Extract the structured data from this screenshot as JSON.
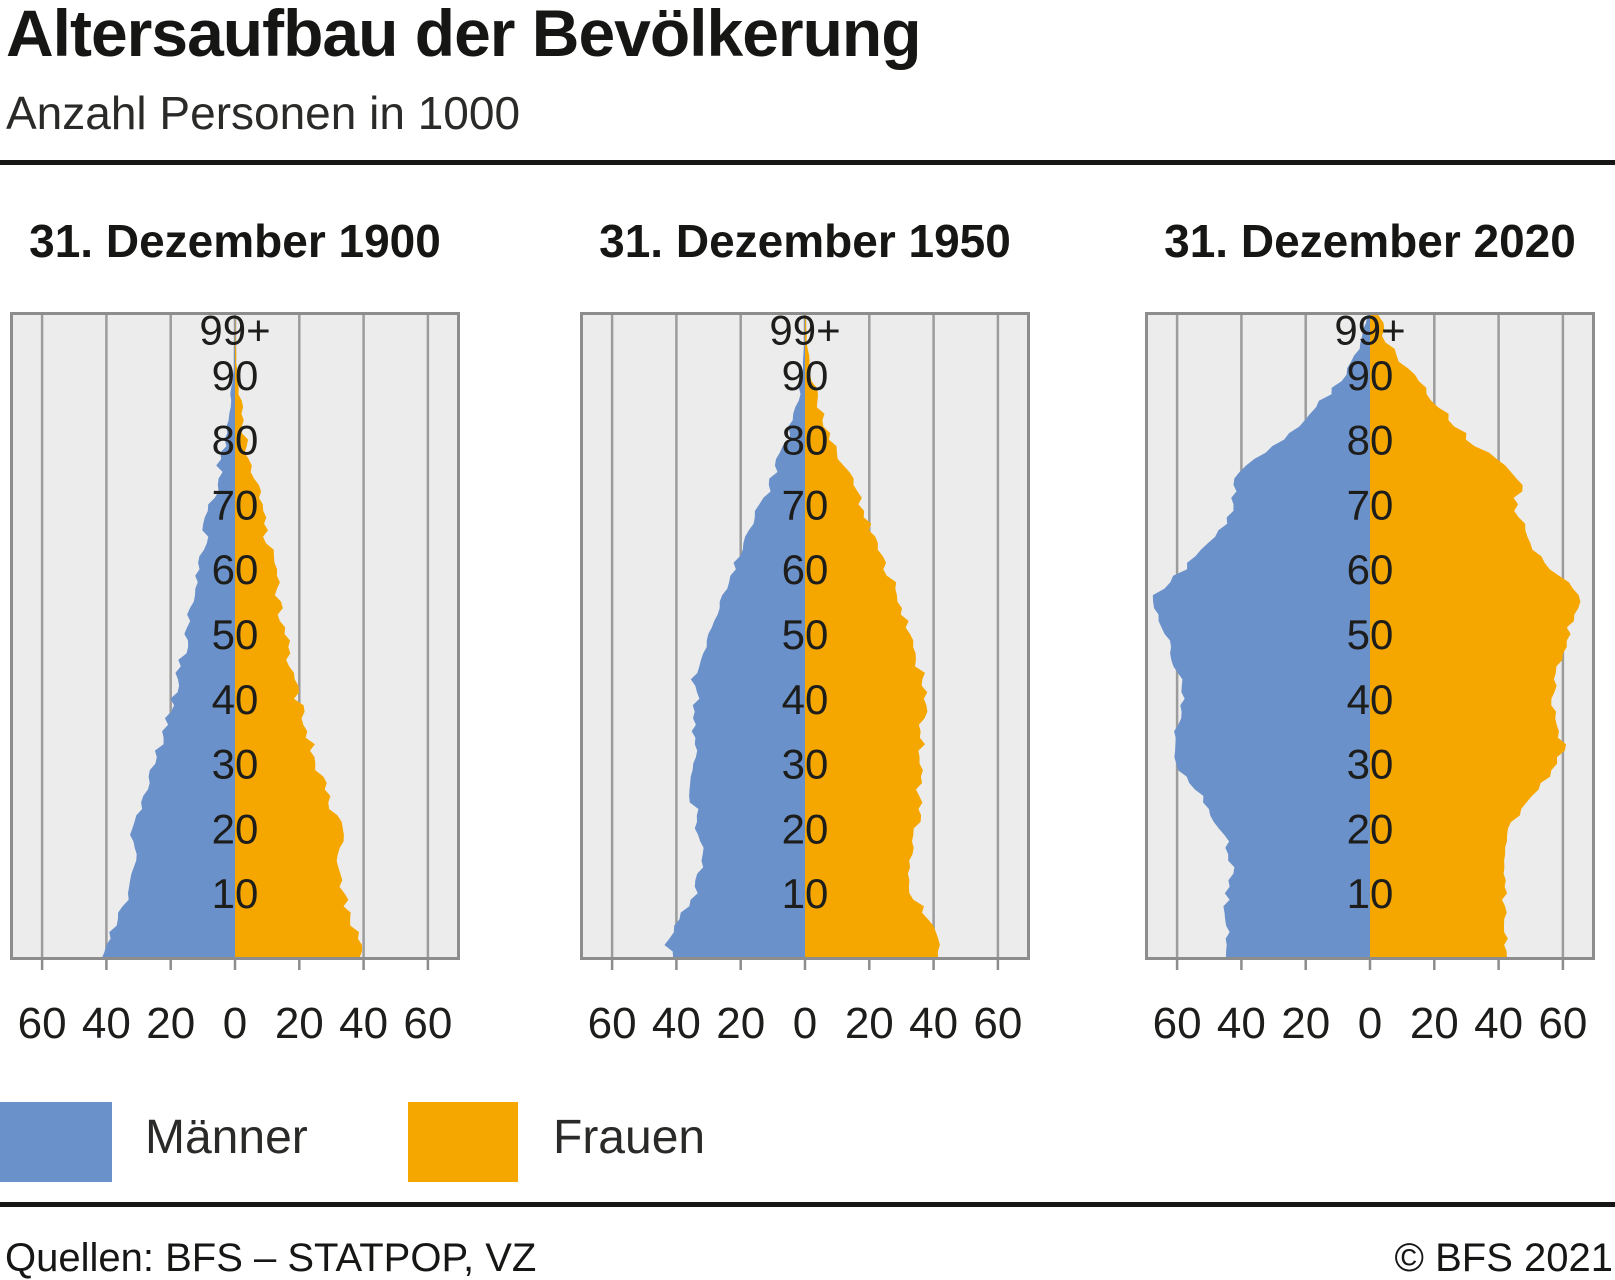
{
  "header": {
    "title": "Altersaufbau der Bevölkerung",
    "subtitle": "Anzahl Personen in 1000"
  },
  "legend": {
    "items": [
      {
        "label": "Männer",
        "color": "#6b91cb"
      },
      {
        "label": "Frauen",
        "color": "#f5a700"
      }
    ]
  },
  "footer": {
    "source": "Quellen: BFS – STATPOP, VZ",
    "copyright": "© BFS 2021"
  },
  "chart_data": {
    "type": "area",
    "chart_kind": "population-pyramid",
    "title": "Altersaufbau der Bevölkerung",
    "unit": "Anzahl Personen in 1000",
    "grid": "vertical",
    "legend_position": "bottom-left",
    "x_axis": {
      "tick_labels": [
        "60",
        "40",
        "20",
        "0",
        "20",
        "40",
        "60"
      ],
      "tick_units": [
        -60,
        -40,
        -20,
        0,
        20,
        40,
        60
      ],
      "range_units": [
        -70,
        70
      ]
    },
    "y_axis": {
      "range_years": [
        0,
        100
      ],
      "age_labels": [
        {
          "label": "99+",
          "age": 97
        },
        {
          "label": "90",
          "age": 90
        },
        {
          "label": "80",
          "age": 80
        },
        {
          "label": "70",
          "age": 70
        },
        {
          "label": "60",
          "age": 60
        },
        {
          "label": "50",
          "age": 50
        },
        {
          "label": "40",
          "age": 40
        },
        {
          "label": "30",
          "age": 30
        },
        {
          "label": "20",
          "age": 20
        },
        {
          "label": "10",
          "age": 10
        }
      ]
    },
    "colors": {
      "male": "#6b91cb",
      "female": "#f5a700",
      "plot_bg": "#ececec",
      "grid": "#9c9c9c",
      "border": "#8d8d8d",
      "text": "#1d1d1b"
    },
    "charts": [
      {
        "title": "31. Dezember 1900",
        "ages": [
          0,
          5,
          10,
          15,
          19,
          22,
          25,
          30,
          35,
          40,
          45,
          50,
          55,
          60,
          65,
          70,
          75,
          80,
          85,
          90,
          95,
          100
        ],
        "male": [
          40.5,
          37.5,
          33.5,
          31.5,
          32,
          30.5,
          27.5,
          25,
          22,
          19,
          16.8,
          15,
          13.2,
          11.8,
          9.5,
          7.3,
          5,
          3,
          1.5,
          0.5,
          0.1,
          0
        ],
        "female": [
          40,
          37,
          33.5,
          32,
          33,
          31.5,
          28.5,
          25.5,
          22.5,
          19.5,
          17.3,
          15.5,
          13.7,
          12.2,
          10,
          7.8,
          5.5,
          3.5,
          1.9,
          0.7,
          0.2,
          0
        ]
      },
      {
        "title": "31. Dezember 1950",
        "ages": [
          0,
          3,
          5,
          8,
          10,
          14,
          17,
          20,
          25,
          30,
          35,
          40,
          43,
          45,
          50,
          55,
          60,
          65,
          70,
          75,
          80,
          85,
          90,
          95,
          100
        ],
        "male": [
          42,
          43,
          41,
          37,
          34,
          32,
          32.5,
          33.5,
          35,
          35,
          34.5,
          34,
          34.5,
          33,
          30.5,
          27,
          22.5,
          18,
          13.5,
          9.5,
          5.5,
          2.8,
          1,
          0.2,
          0
        ],
        "female": [
          40.5,
          41.5,
          40,
          36.5,
          33.5,
          32,
          33,
          34.5,
          35.5,
          36,
          36.5,
          37,
          37.5,
          35.5,
          33,
          29.5,
          25.5,
          21.5,
          17.5,
          13,
          8.5,
          4.8,
          2,
          0.6,
          0.1
        ]
      },
      {
        "title": "31. Dezember 2020",
        "ages": [
          0,
          5,
          10,
          15,
          20,
          25,
          30,
          33,
          35,
          40,
          45,
          50,
          53,
          56,
          58,
          60,
          65,
          70,
          73,
          76,
          80,
          85,
          90,
          95,
          100
        ],
        "male": [
          44,
          45,
          44.5,
          43,
          46.5,
          53,
          60.5,
          61.5,
          60,
          58.5,
          60,
          63.5,
          65.5,
          67,
          63,
          58,
          47,
          42,
          43,
          37.5,
          27,
          16.5,
          7.5,
          2.5,
          0.6
        ],
        "female": [
          41.5,
          42.5,
          42,
          40.5,
          43,
          50,
          58.5,
          60,
          58.5,
          57,
          58.5,
          61.5,
          63.5,
          65,
          61.5,
          57,
          48,
          45.5,
          46.5,
          41.5,
          31,
          22,
          13,
          5.5,
          2.2
        ]
      }
    ]
  }
}
